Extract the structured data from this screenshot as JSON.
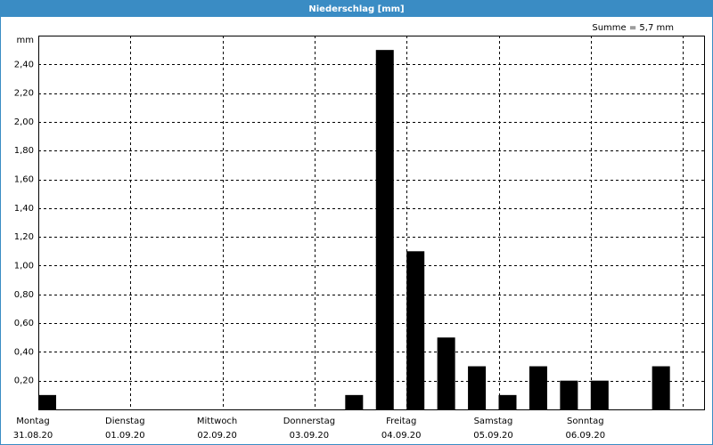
{
  "chart_data": {
    "type": "bar",
    "title": "Niederschlag [mm]",
    "summary": "Summe = 5,7 mm",
    "y_unit": "mm",
    "days": [
      {
        "day": "Montag",
        "date": "31.08.20"
      },
      {
        "day": "Dienstag",
        "date": "01.09.20"
      },
      {
        "day": "Mittwoch",
        "date": "02.09.20"
      },
      {
        "day": "Donnerstag",
        "date": "03.09.20"
      },
      {
        "day": "Freitag",
        "date": "04.09.20"
      },
      {
        "day": "Samstag",
        "date": "05.09.20"
      },
      {
        "day": "Sonntag",
        "date": "06.09.20"
      }
    ],
    "values": [
      0.1,
      0,
      0,
      0,
      0,
      0,
      0,
      0,
      0,
      0,
      0.1,
      2.5,
      1.1,
      0.5,
      0.3,
      0.1,
      0.3,
      0.2,
      0.2,
      0,
      0.3
    ],
    "color": "#000000",
    "ylim": [
      0,
      2.6
    ],
    "yticks": [
      {
        "value": 0.2,
        "label": "0,20"
      },
      {
        "value": 0.4,
        "label": "0,40"
      },
      {
        "value": 0.6,
        "label": "0,60"
      },
      {
        "value": 0.8,
        "label": "0,80"
      },
      {
        "value": 1.0,
        "label": "1,00"
      },
      {
        "value": 1.2,
        "label": "1,20"
      },
      {
        "value": 1.4,
        "label": "1,40"
      },
      {
        "value": 1.6,
        "label": "1,60"
      },
      {
        "value": 1.8,
        "label": "1,80"
      },
      {
        "value": 2.0,
        "label": "2,00"
      },
      {
        "value": 2.2,
        "label": "2,20"
      },
      {
        "value": 2.4,
        "label": "2,40"
      }
    ],
    "grid": true
  }
}
